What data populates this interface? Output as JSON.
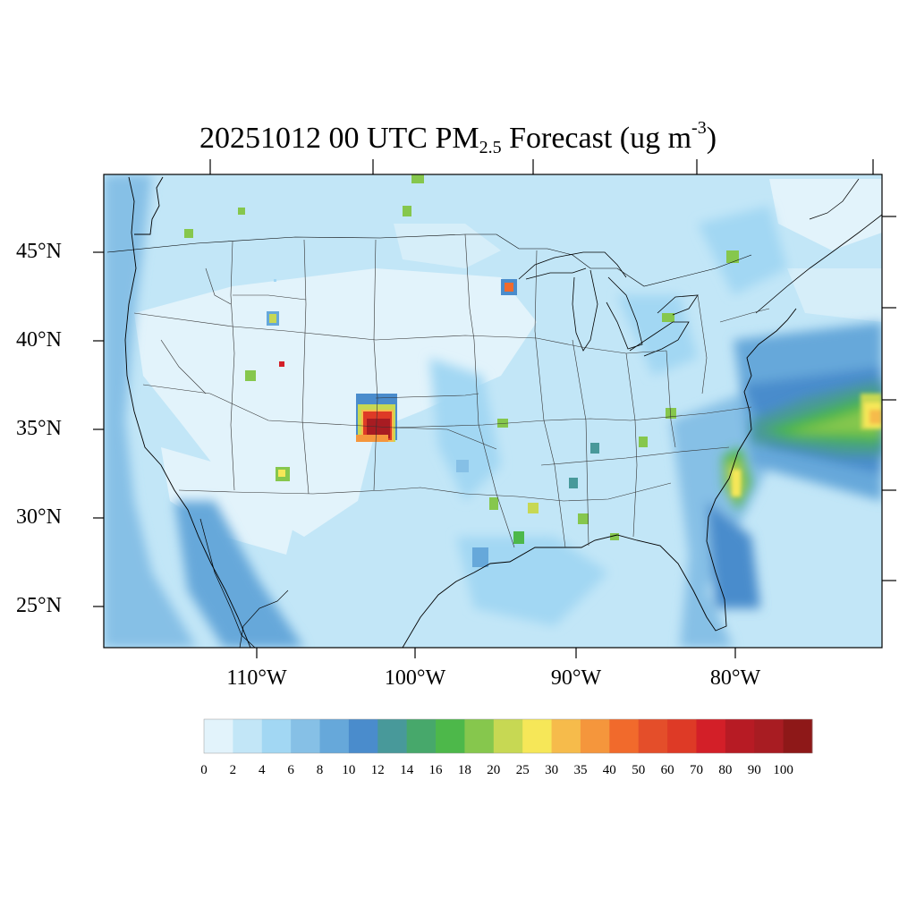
{
  "title": {
    "prefix": "20251012 00 UTC PM",
    "sub": "2.5",
    "middle": " Forecast (ug m",
    "sup": "-3",
    "suffix": ")"
  },
  "map": {
    "projection": "Lambert conformal (CONUS)",
    "lat_ticks": [
      "45°N",
      "40°N",
      "35°N",
      "30°N",
      "25°N"
    ],
    "lon_ticks": [
      "110°W",
      "100°W",
      "90°W",
      "80°W"
    ]
  },
  "colorbar": {
    "levels": [
      "0",
      "2",
      "4",
      "6",
      "8",
      "10",
      "12",
      "14",
      "16",
      "18",
      "20",
      "25",
      "30",
      "35",
      "40",
      "50",
      "60",
      "70",
      "80",
      "90",
      "100"
    ],
    "colors": [
      "#e2f3fb",
      "#c2e6f7",
      "#a2d7f3",
      "#86c0e6",
      "#66a8da",
      "#4a8ccc",
      "#48999a",
      "#47a86b",
      "#4db84a",
      "#86c74d",
      "#c7d853",
      "#f6e758",
      "#f6bb4b",
      "#f5963c",
      "#f16a2c",
      "#e44e2a",
      "#de3a26",
      "#d31f28",
      "#b71b24",
      "#a81c22",
      "#8e1818"
    ]
  }
}
